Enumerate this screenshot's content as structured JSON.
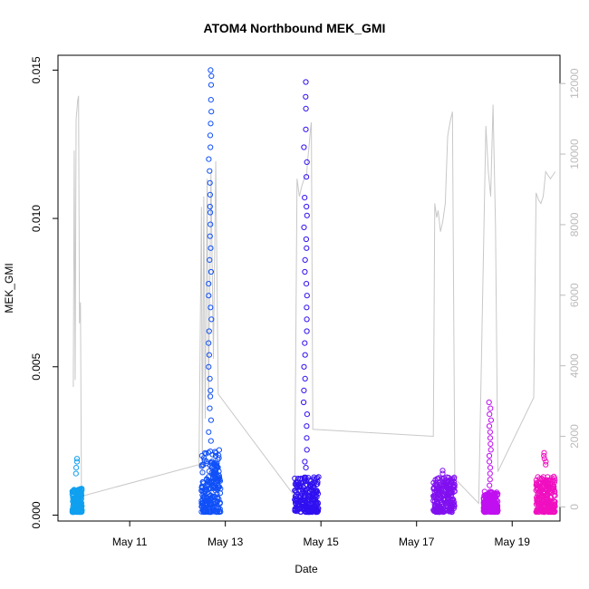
{
  "chart_data": {
    "type": "scatter",
    "title": "ATOM4 Northbound MEK_GMI",
    "xlabel": "Date",
    "ylabel": "MEK_GMI",
    "x_ticks": [
      "May 11",
      "May 13",
      "May 15",
      "May 17",
      "May 19"
    ],
    "x_tick_days": [
      11,
      13,
      15,
      17,
      19
    ],
    "xlim": [
      9.5,
      20.0
    ],
    "ylim": [
      -0.0002,
      0.0155
    ],
    "y_ticks": [
      0.0,
      0.005,
      0.01,
      0.015
    ],
    "y_tick_labels": [
      "0.000",
      "0.005",
      "0.010",
      "0.015"
    ],
    "y2lim": [
      -400,
      12800
    ],
    "y2_ticks": [
      0,
      2000,
      4000,
      6000,
      8000,
      10000,
      12000
    ],
    "y2_tick_labels": [
      "0",
      "2000",
      "4000",
      "6000",
      "8000",
      "10000",
      "12000"
    ],
    "y2_color": "#bbbbbb",
    "grid": false,
    "series": [
      {
        "color": "#10a0f0",
        "x_range": [
          9.8,
          10.0
        ],
        "y_min": 0.0001,
        "y_max": 0.0019,
        "dense_max": 0.0009,
        "spikes": [
          0.0014,
          0.0016,
          0.0018,
          0.0019
        ]
      },
      {
        "color": "#1050f8",
        "x_range": [
          12.5,
          12.9
        ],
        "y_min": 0.0001,
        "y_max": 0.015,
        "dense_max": 0.0022,
        "spikes": [
          0.015,
          0.0148,
          0.0145,
          0.014,
          0.0136,
          0.0132,
          0.0128,
          0.0124,
          0.012,
          0.0116,
          0.0112,
          0.0108,
          0.0104,
          0.0102,
          0.0098,
          0.0094,
          0.009,
          0.0086,
          0.0082,
          0.0078,
          0.0074,
          0.007,
          0.0066,
          0.0062,
          0.0058,
          0.0054,
          0.005,
          0.0046,
          0.0042,
          0.004,
          0.0036,
          0.0032,
          0.0028,
          0.0025
        ]
      },
      {
        "color": "#3010f0",
        "x_range": [
          14.45,
          14.95
        ],
        "y_min": 0.0001,
        "y_max": 0.0146,
        "dense_max": 0.0013,
        "spikes": [
          0.0146,
          0.0141,
          0.0137,
          0.013,
          0.0124,
          0.0119,
          0.0114,
          0.0107,
          0.0104,
          0.0101,
          0.0097,
          0.0093,
          0.009,
          0.0086,
          0.0082,
          0.0078,
          0.0074,
          0.007,
          0.0066,
          0.0062,
          0.0058,
          0.0054,
          0.005,
          0.0046,
          0.0042,
          0.0038,
          0.0034,
          0.003,
          0.0026,
          0.0022,
          0.0018,
          0.0016
        ]
      },
      {
        "color": "#8010f0",
        "x_range": [
          17.35,
          17.8
        ],
        "y_min": 0.0001,
        "y_max": 0.0015,
        "dense_max": 0.0013,
        "spikes": [
          0.0015,
          0.0014
        ]
      },
      {
        "color": "#c010f0",
        "x_range": [
          18.4,
          18.7
        ],
        "y_min": 0.0001,
        "y_max": 0.0038,
        "dense_max": 0.0008,
        "spikes": [
          0.0038,
          0.0036,
          0.0034,
          0.0032,
          0.003,
          0.0028,
          0.0026,
          0.0024,
          0.0022,
          0.002,
          0.0018,
          0.0016,
          0.0014,
          0.0012,
          0.001
        ]
      },
      {
        "color": "#f010c0",
        "x_range": [
          19.5,
          19.9
        ],
        "y_min": 0.0001,
        "y_max": 0.0021,
        "dense_max": 0.0013,
        "spikes": [
          0.0021,
          0.002,
          0.0019,
          0.0018,
          0.0017
        ]
      }
    ],
    "secondary_line": {
      "color": "#c8c8c8",
      "axis": "right",
      "points": [
        [
          9.82,
          3400
        ],
        [
          9.84,
          10100
        ],
        [
          9.86,
          3600
        ],
        [
          9.88,
          11000
        ],
        [
          9.9,
          11300
        ],
        [
          9.91,
          11500
        ],
        [
          9.93,
          11650
        ],
        [
          9.95,
          5200
        ],
        [
          9.97,
          5800
        ],
        [
          9.99,
          300
        ],
        [
          12.45,
          1200
        ],
        [
          12.5,
          8500
        ],
        [
          12.52,
          900
        ],
        [
          12.55,
          8800
        ],
        [
          12.58,
          2500
        ],
        [
          12.62,
          9300
        ],
        [
          12.65,
          3000
        ],
        [
          12.7,
          9500
        ],
        [
          12.75,
          4200
        ],
        [
          12.8,
          9800
        ],
        [
          12.85,
          3200
        ],
        [
          14.45,
          300
        ],
        [
          14.5,
          9300
        ],
        [
          14.55,
          8800
        ],
        [
          14.6,
          9100
        ],
        [
          14.65,
          9300
        ],
        [
          14.7,
          9400
        ],
        [
          14.72,
          9800
        ],
        [
          14.75,
          10200
        ],
        [
          14.78,
          10700
        ],
        [
          14.8,
          10900
        ],
        [
          14.83,
          2200
        ],
        [
          17.35,
          2000
        ],
        [
          17.38,
          8600
        ],
        [
          17.42,
          8200
        ],
        [
          17.45,
          8400
        ],
        [
          17.5,
          7800
        ],
        [
          17.55,
          8100
        ],
        [
          17.6,
          8600
        ],
        [
          17.65,
          10500
        ],
        [
          17.7,
          10900
        ],
        [
          17.75,
          11200
        ],
        [
          17.8,
          800
        ],
        [
          18.3,
          100
        ],
        [
          18.45,
          10800
        ],
        [
          18.5,
          9500
        ],
        [
          18.55,
          8800
        ],
        [
          18.6,
          11400
        ],
        [
          18.65,
          8000
        ],
        [
          18.7,
          1000
        ],
        [
          19.45,
          3100
        ],
        [
          19.5,
          8900
        ],
        [
          19.55,
          8700
        ],
        [
          19.6,
          8600
        ],
        [
          19.65,
          8800
        ],
        [
          19.7,
          9500
        ],
        [
          19.75,
          9400
        ],
        [
          19.8,
          9300
        ],
        [
          19.85,
          9400
        ],
        [
          19.9,
          9500
        ]
      ]
    }
  }
}
